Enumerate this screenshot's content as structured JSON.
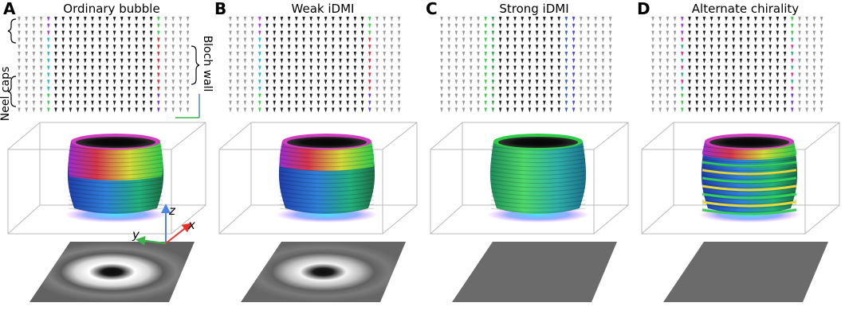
{
  "panels": [
    {
      "letter": "A",
      "title": "Ordinary bubble",
      "style": "ordinary",
      "bottom": "ring"
    },
    {
      "letter": "B",
      "title": "Weak iDMI",
      "style": "weak",
      "bottom": "ring"
    },
    {
      "letter": "C",
      "title": "Strong iDMI",
      "style": "strong",
      "bottom": "flat"
    },
    {
      "letter": "D",
      "title": "Alternate chirality",
      "style": "alternate",
      "bottom": "flat"
    }
  ],
  "annotations": {
    "neel_caps": "Neel caps",
    "bloch_wall": "Bloch wall"
  },
  "axes": {
    "x": "x",
    "y": "y",
    "z": "z"
  },
  "colors": {
    "background": "#ffffff",
    "gray_arrows": "#9a9a9a",
    "dark_arrows": "#1f1f1f",
    "box_lines": "#b9b9b9",
    "flat_slab": "#6b6b6b",
    "axis_x": "#e8302a",
    "axis_y": "#3cb44a",
    "axis_z": "#4a86e8"
  }
}
